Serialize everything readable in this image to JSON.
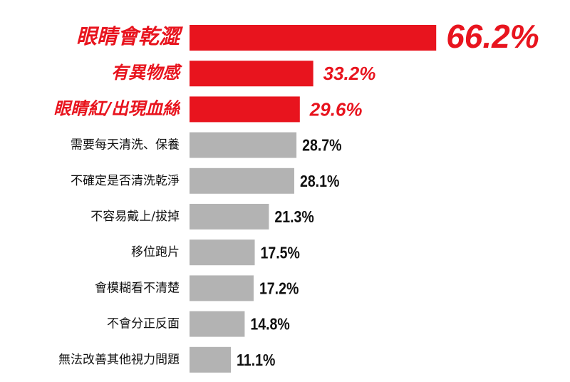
{
  "chart_data": {
    "type": "hbar",
    "categories": [
      "眼睛會乾澀",
      "有異物感",
      "眼睛紅/出現血絲",
      "需要每天清洗、保養",
      "不確定是否清洗乾淨",
      "不容易戴上/拔掉",
      "移位跑片",
      "會模糊看不清楚",
      "不會分正反面",
      "無法改善其他視力問題"
    ],
    "values": [
      66.2,
      33.2,
      29.6,
      28.7,
      28.1,
      21.3,
      17.5,
      17.2,
      14.8,
      11.1
    ],
    "value_labels": [
      "66.2%",
      "33.2%",
      "29.6%",
      "28.7%",
      "28.1%",
      "21.3%",
      "17.5%",
      "17.2%",
      "14.8%",
      "11.1%"
    ],
    "colors": [
      "#e8141e",
      "#e8141e",
      "#e8141e",
      "#b3b3b3",
      "#b3b3b3",
      "#b3b3b3",
      "#b3b3b3",
      "#b3b3b3",
      "#b3b3b3",
      "#b3b3b3"
    ],
    "highlight_color": "#e8141e"
  }
}
